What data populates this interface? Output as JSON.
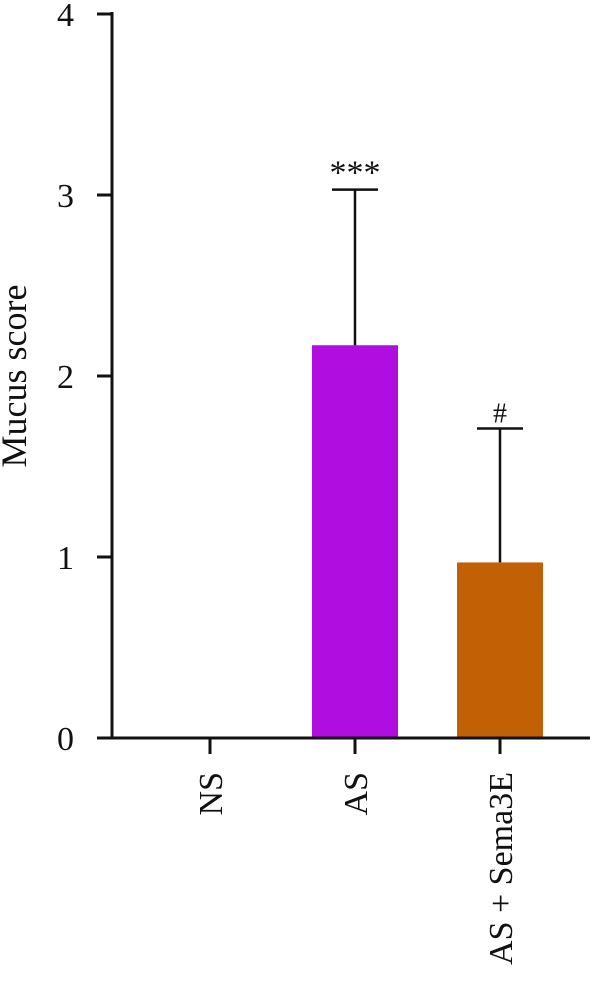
{
  "chart_data": {
    "type": "bar",
    "title": "",
    "ylabel": "Mucus score",
    "xlabel": "",
    "categories": [
      "NS",
      "AS",
      "AS + Sema3E"
    ],
    "values": [
      0,
      2.17,
      0.97
    ],
    "error_upper": [
      0,
      3.03,
      1.71
    ],
    "annotations": [
      "",
      "***",
      "#"
    ],
    "colors": [
      "#ffffff",
      "#b00ee0",
      "#c26005"
    ],
    "ylim": [
      0,
      4
    ],
    "yticks": [
      "0",
      "1",
      "2",
      "3",
      "4"
    ],
    "grid": false,
    "legend": "none"
  }
}
